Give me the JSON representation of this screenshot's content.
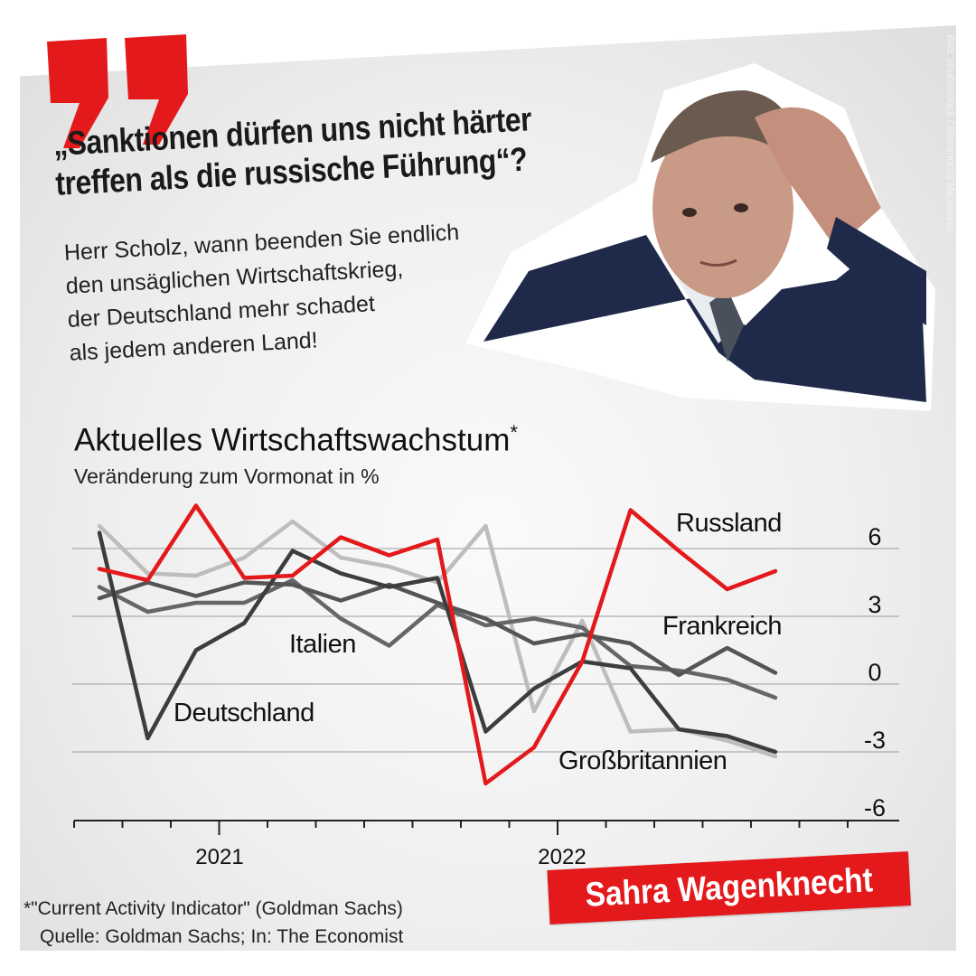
{
  "colors": {
    "accent_red": "#e3191b",
    "background": "#ececec"
  },
  "headline": "„Sanktionen dürfen uns nicht härter treffen als die russische Führung“?",
  "subtext_lines": [
    "Herr Scholz, wann beenden Sie endlich",
    "den unsäglichen Wirtschaftskrieg,",
    "der Deutschland mehr schadet",
    "als jedem anderen Land!"
  ],
  "photo_credit": "Bild: shutterstock / Alexandros Michailidis",
  "chart_title": "Aktuelles Wirtschaftswachstum",
  "chart_title_marker": "*",
  "chart_subtitle": "Veränderung zum Vormonat in %",
  "footnote": "*\"Current Activity Indicator\" (Goldman Sachs)",
  "source": "Quelle: Goldman Sachs; In: The Economist",
  "brand": "Sahra Wagenknecht",
  "chart_data": {
    "type": "line",
    "title": "Aktuelles Wirtschaftswachstum*",
    "subtitle": "Veränderung zum Vormonat in %",
    "x": [
      0,
      1,
      2,
      3,
      4,
      5,
      6,
      7,
      8,
      9,
      10,
      11,
      12,
      13,
      14
    ],
    "x_tick_labels": [
      "2021",
      "2022"
    ],
    "y_ticks": [
      6,
      3,
      0,
      -3,
      -6
    ],
    "ylim": [
      -6,
      7.5
    ],
    "grid": true,
    "series": [
      {
        "name": "Russland",
        "color": "#e3191b",
        "values": [
          5.1,
          4.6,
          7.9,
          4.7,
          4.8,
          6.5,
          5.7,
          6.4,
          -4.4,
          -2.8,
          1.0,
          7.7,
          5.9,
          4.2,
          5.0
        ]
      },
      {
        "name": "Frankreich",
        "color": "#666666",
        "values": [
          4.3,
          3.2,
          3.6,
          3.6,
          4.6,
          2.9,
          1.7,
          3.5,
          2.6,
          2.9,
          2.5,
          0.8,
          0.6,
          0.2,
          -0.6
        ]
      },
      {
        "name": "Italien",
        "color": "#bdbdbd",
        "values": [
          7.0,
          4.9,
          4.8,
          5.6,
          7.2,
          5.6,
          5.2,
          4.5,
          7.0,
          -1.2,
          2.8,
          -2.1,
          -2.0,
          -2.5,
          -3.2
        ]
      },
      {
        "name": "Deutschland",
        "color": "#3d3d3d",
        "values": [
          6.7,
          -2.4,
          1.5,
          2.7,
          5.9,
          4.9,
          4.3,
          4.7,
          -2.1,
          -0.2,
          1.0,
          0.7,
          -2.0,
          -2.3,
          -3.0
        ]
      },
      {
        "name": "Großbritannien",
        "color": "#555555",
        "values": [
          3.8,
          4.5,
          3.9,
          4.5,
          4.4,
          3.7,
          4.4,
          3.6,
          2.9,
          1.8,
          2.2,
          1.8,
          0.4,
          1.6,
          0.5
        ]
      }
    ]
  }
}
